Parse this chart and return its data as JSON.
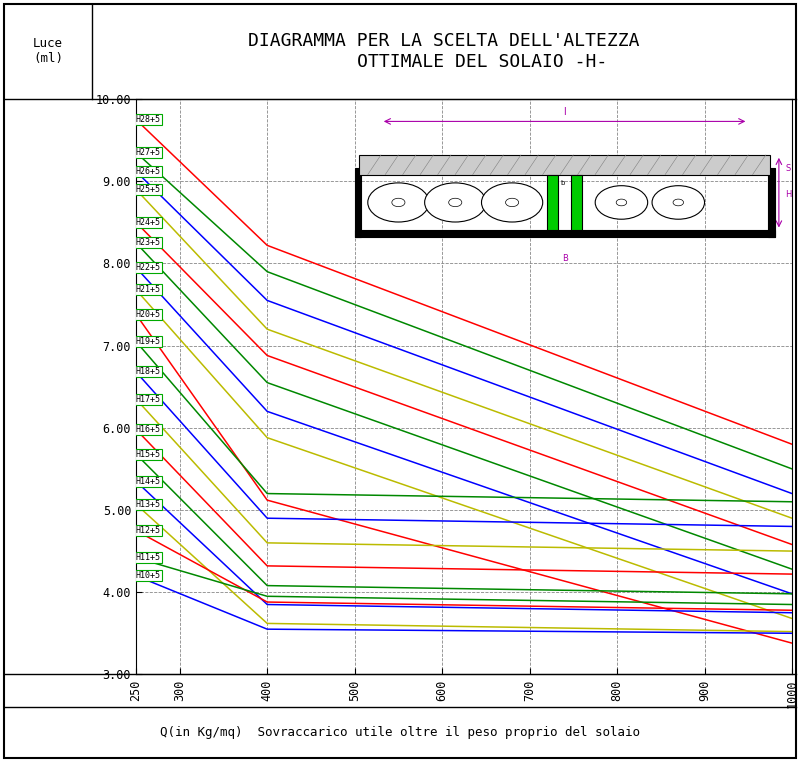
{
  "title": "DIAGRAMMA PER LA SCELTA DELL'ALTEZZA\n       OTTIMALE DEL SOLAIO -H-",
  "ylabel": "Luce\n(ml)",
  "xlabel": "Q(in Kg/mq)  Sovraccarico utile oltre il peso proprio del solaio",
  "ylim": [
    3.0,
    10.0
  ],
  "xlim": [
    250,
    1000
  ],
  "ytick_vals": [
    3.0,
    4.0,
    5.0,
    6.0,
    7.0,
    8.0,
    9.0,
    10.0
  ],
  "ytick_labels": [
    "3.00",
    "4.00",
    "5.00",
    "6.00",
    "7.00",
    "8.00",
    "9.00",
    "10.00"
  ],
  "xtick_vals": [
    250,
    300,
    400,
    500,
    600,
    700,
    800,
    900,
    1000
  ],
  "xtick_labels": [
    "250",
    "300",
    "400",
    "500",
    "600",
    "700",
    "800",
    "900",
    "1000"
  ],
  "bg_color": "#FFFFFF",
  "grid_color": "#888888",
  "label_edge_color": "#00AA00",
  "line_colors": [
    "#FF0000",
    "#008800",
    "#0000FF",
    "#BBBB00",
    "#FF0000",
    "#008800",
    "#0000FF",
    "#BBBB00",
    "#FF0000",
    "#008800",
    "#0000FF",
    "#BBBB00",
    "#FF0000",
    "#008800",
    "#0000FF",
    "#BBBB00",
    "#FF0000",
    "#008800",
    "#0000FF"
  ],
  "curve_params": [
    [
      "H28+5",
      9.75,
      8.2,
      5.8
    ],
    [
      "H27+5",
      9.35,
      7.82,
      5.5
    ],
    [
      "H26+5",
      9.12,
      7.48,
      5.2
    ],
    [
      "H25+5",
      8.9,
      7.15,
      4.9
    ],
    [
      "H24+5",
      8.5,
      6.8,
      4.55
    ],
    [
      "H23+5",
      8.25,
      6.48,
      4.25
    ],
    [
      "H22+5",
      7.95,
      6.15,
      3.95
    ],
    [
      "H21+5",
      7.68,
      5.82,
      3.65
    ],
    [
      "H20+5",
      7.38,
      5.5,
      3.35
    ],
    [
      "H19+5",
      7.05,
      5.18,
      5.1
    ],
    [
      "H18+5",
      6.68,
      4.88,
      4.8
    ],
    [
      "H17+5",
      6.35,
      4.58,
      4.5
    ],
    [
      "H16+5",
      5.98,
      4.3,
      4.22
    ],
    [
      "H15+5",
      5.68,
      4.05,
      3.97
    ],
    [
      "H14+5",
      5.35,
      3.82,
      3.75
    ],
    [
      "H13+5",
      5.07,
      3.6,
      3.53
    ],
    [
      "H12+5",
      4.75,
      3.85,
      3.78
    ],
    [
      "H11+5",
      4.42,
      3.95,
      3.88
    ],
    [
      "H10+5",
      4.2,
      3.55,
      3.5
    ]
  ]
}
